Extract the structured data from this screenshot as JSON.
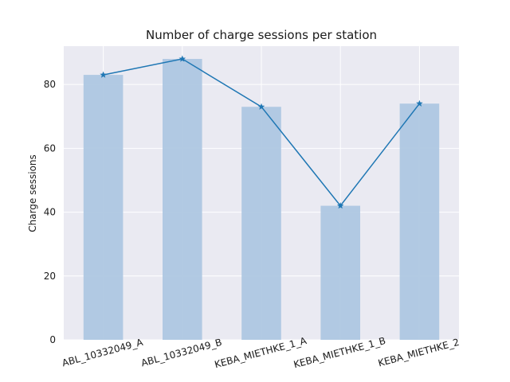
{
  "chart_data": {
    "type": "bar",
    "title": "Number of charge sessions per station",
    "xlabel": "",
    "ylabel": "Charge sessions",
    "categories": [
      "ABL_10332049_A",
      "ABL_10332049_B",
      "KEBA_MIETHKE_1_A",
      "KEBA_MIETHKE_1_B",
      "KEBA_MIETHKE_2"
    ],
    "values": [
      83,
      88,
      73,
      42,
      74
    ],
    "line_overlay": true,
    "line_marker": "star",
    "ylim": [
      0,
      92
    ],
    "yticks": [
      0,
      20,
      40,
      60,
      80
    ],
    "grid": true,
    "colors": {
      "bar": "#aec7e1",
      "line": "#1f77b4",
      "plot_bg": "#eaeaf2",
      "grid": "#ffffff"
    }
  }
}
